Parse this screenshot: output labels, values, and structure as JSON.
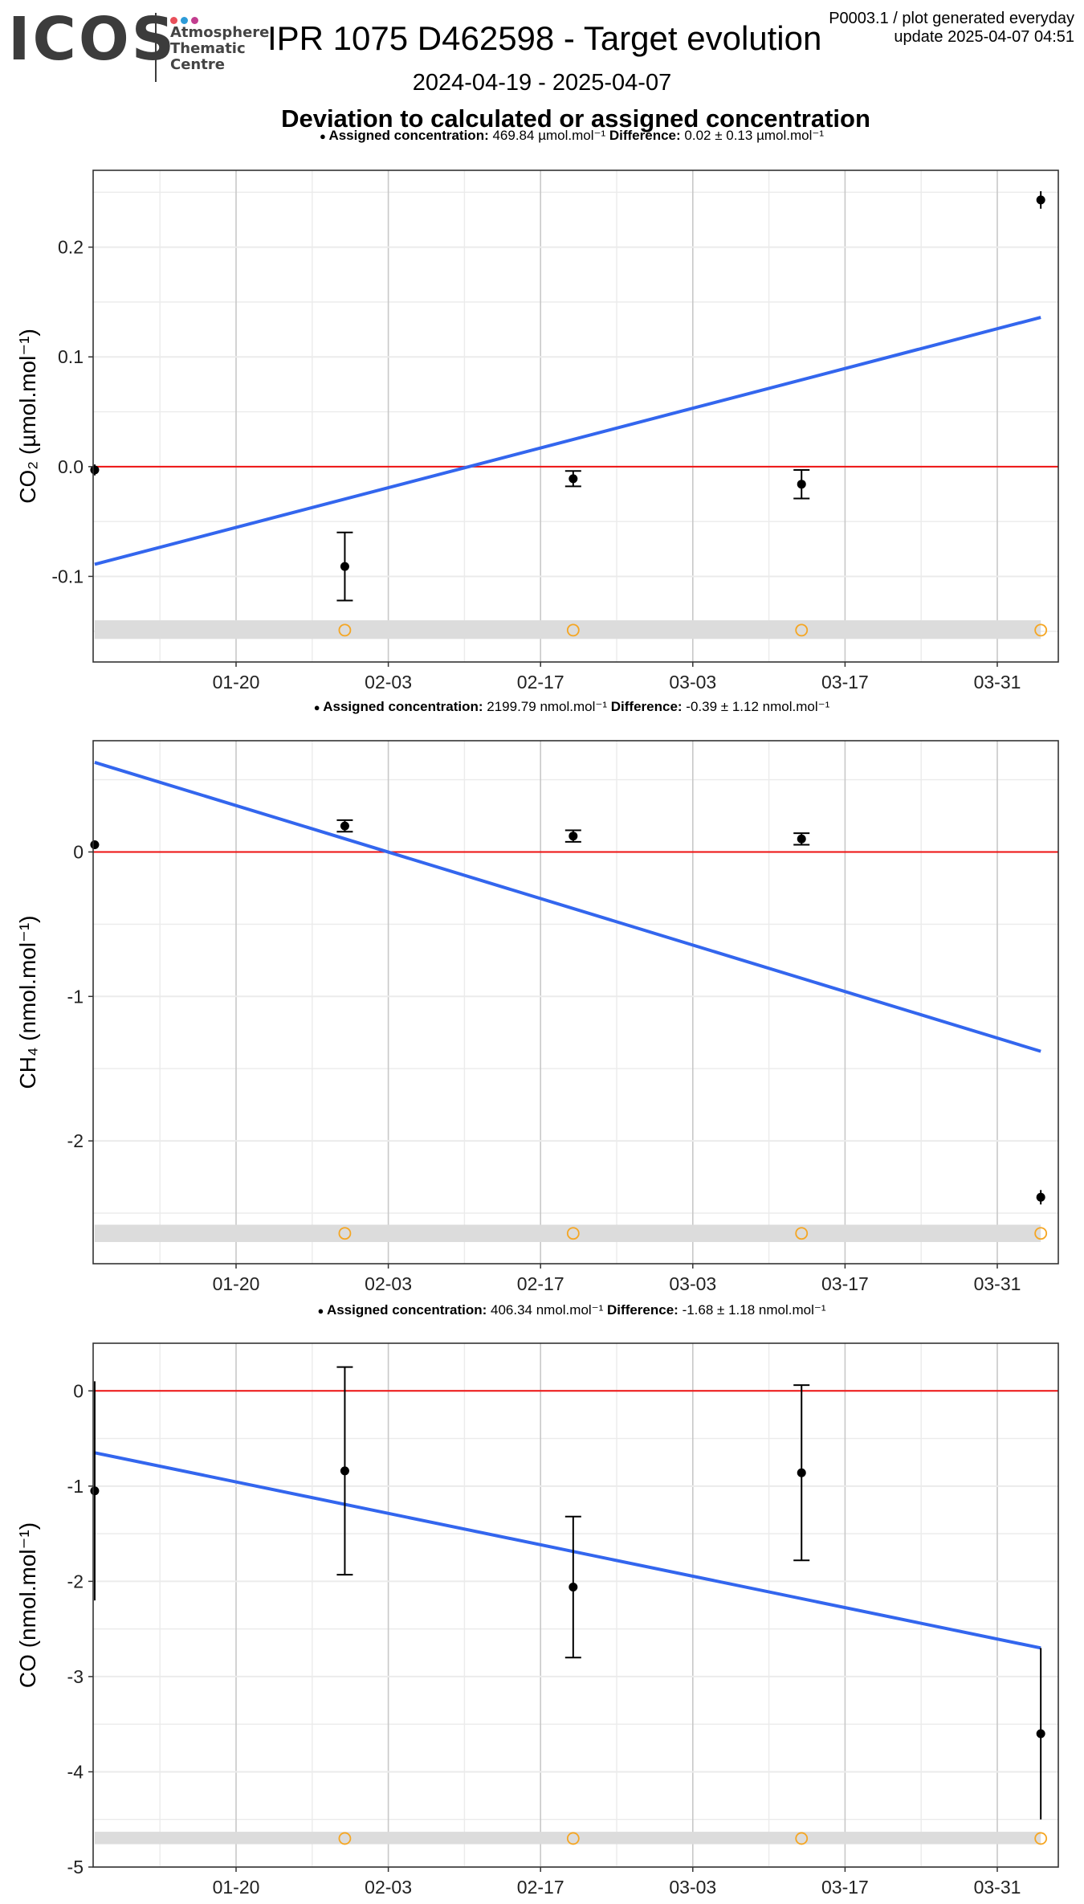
{
  "header": {
    "logo_text": "ICOS",
    "logo_subtitle": [
      "Atmosphere",
      "Thematic",
      "Centre"
    ],
    "logo_dot_colors": [
      "#e94f5a",
      "#2d9bd8",
      "#c23d8f"
    ],
    "title": "IPR 1075 D462598 - Target evolution",
    "meta_line1": "P0003.1 / plot generated everyday",
    "meta_line2": "update  2025-04-07 04:51",
    "date_range": "2024-04-19 - 2025-04-07",
    "subtitle": "Deviation to calculated or assigned concentration"
  },
  "colors": {
    "trend": "#3366ee",
    "zero_line": "#ee1111",
    "points": "#000000",
    "open_markers": "#f5a623",
    "band": "#dcdcdc",
    "grid_major": "#c8c8c8",
    "grid_minor": "#ebebeb"
  },
  "chart_data": [
    {
      "type": "scatter",
      "x_tick_labels": [
        "01-20",
        "02-03",
        "02-17",
        "03-03",
        "03-17",
        "03-31"
      ],
      "x_ticks": [
        "2025-01-20",
        "2025-02-03",
        "2025-02-17",
        "2025-03-03",
        "2025-03-17",
        "2025-03-31"
      ],
      "ylabel": "CO₂ (µmol.mol⁻¹)",
      "ylim": [
        -0.178,
        0.27
      ],
      "y_ticks": [
        -0.1,
        0.0,
        0.1,
        0.2
      ],
      "y_tick_labels": [
        "-0.1",
        "0.0",
        "0.1",
        "0.2"
      ],
      "info": {
        "bold_label": "Assigned concentration:",
        "assigned": "469.84 µmol.mol⁻¹",
        "diff_label": "Difference:",
        "difference": "0.02 ± 0.13 µmol.mol⁻¹"
      },
      "points": [
        {
          "x": "2025-01-07",
          "y": -0.003,
          "err": 0.005
        },
        {
          "x": "2025-01-30",
          "y": -0.091,
          "err": 0.031
        },
        {
          "x": "2025-02-20",
          "y": -0.011,
          "err": 0.007
        },
        {
          "x": "2025-03-13",
          "y": -0.016,
          "err": 0.013
        },
        {
          "x": "2025-04-04",
          "y": 0.243,
          "err": 0.008
        }
      ],
      "trend": {
        "x0": "2025-01-07",
        "y0": -0.089,
        "x1": "2025-04-04",
        "y1": 0.136
      },
      "band": {
        "y_low": -0.157,
        "y_high": -0.14
      },
      "band_y": -0.149,
      "open_markers_x": [
        "2025-01-30",
        "2025-02-20",
        "2025-03-13",
        "2025-04-04"
      ]
    },
    {
      "type": "scatter",
      "x_tick_labels": [
        "01-20",
        "02-03",
        "02-17",
        "03-03",
        "03-17",
        "03-31"
      ],
      "x_ticks": [
        "2025-01-20",
        "2025-02-03",
        "2025-02-17",
        "2025-03-03",
        "2025-03-17",
        "2025-03-31"
      ],
      "ylabel": "CH₄ (nmol.mol⁻¹)",
      "ylim": [
        -2.85,
        0.77
      ],
      "y_ticks": [
        -2,
        -1,
        0
      ],
      "y_tick_labels": [
        "-2",
        "-1",
        "0"
      ],
      "info": {
        "bold_label": "Assigned concentration:",
        "assigned": "2199.79 nmol.mol⁻¹",
        "diff_label": "Difference:",
        "difference": "-0.39 ± 1.12 nmol.mol⁻¹"
      },
      "points": [
        {
          "x": "2025-01-07",
          "y": 0.05,
          "err": 0.03
        },
        {
          "x": "2025-01-30",
          "y": 0.18,
          "err": 0.04
        },
        {
          "x": "2025-02-20",
          "y": 0.11,
          "err": 0.04
        },
        {
          "x": "2025-03-13",
          "y": 0.09,
          "err": 0.04
        },
        {
          "x": "2025-04-04",
          "y": -2.39,
          "err": 0.05
        }
      ],
      "trend": {
        "x0": "2025-01-07",
        "y0": 0.62,
        "x1": "2025-04-04",
        "y1": -1.38
      },
      "band": {
        "y_low": -2.7,
        "y_high": -2.58
      },
      "band_y": -2.64,
      "open_markers_x": [
        "2025-01-30",
        "2025-02-20",
        "2025-03-13",
        "2025-04-04"
      ]
    },
    {
      "type": "scatter",
      "x_tick_labels": [
        "01-20",
        "02-03",
        "02-17",
        "03-03",
        "03-17",
        "03-31"
      ],
      "x_ticks": [
        "2025-01-20",
        "2025-02-03",
        "2025-02-17",
        "2025-03-03",
        "2025-03-17",
        "2025-03-31"
      ],
      "ylabel": "CO (nmol.mol⁻¹)",
      "ylim": [
        -5.0,
        0.5
      ],
      "y_ticks": [
        -5,
        -4,
        -3,
        -2,
        -1,
        0
      ],
      "y_tick_labels": [
        "-5",
        "-4",
        "-3",
        "-2",
        "-1",
        "0"
      ],
      "info": {
        "bold_label": "Assigned concentration:",
        "assigned": "406.34 nmol.mol⁻¹",
        "diff_label": "Difference:",
        "difference": "-1.68 ± 1.18 nmol.mol⁻¹"
      },
      "points": [
        {
          "x": "2025-01-07",
          "y": -1.05,
          "err": 1.15
        },
        {
          "x": "2025-01-30",
          "y": -0.84,
          "err": 1.09
        },
        {
          "x": "2025-02-20",
          "y": -2.06,
          "err": 0.74
        },
        {
          "x": "2025-03-13",
          "y": -0.86,
          "err": 0.92
        },
        {
          "x": "2025-04-04",
          "y": -3.6,
          "err": 0.9
        }
      ],
      "trend": {
        "x0": "2025-01-07",
        "y0": -0.65,
        "x1": "2025-04-04",
        "y1": -2.7
      },
      "band": {
        "y_low": -4.76,
        "y_high": -4.63
      },
      "band_y": -4.7,
      "open_markers_x": [
        "2025-01-30",
        "2025-02-20",
        "2025-03-13",
        "2025-04-04"
      ]
    }
  ]
}
